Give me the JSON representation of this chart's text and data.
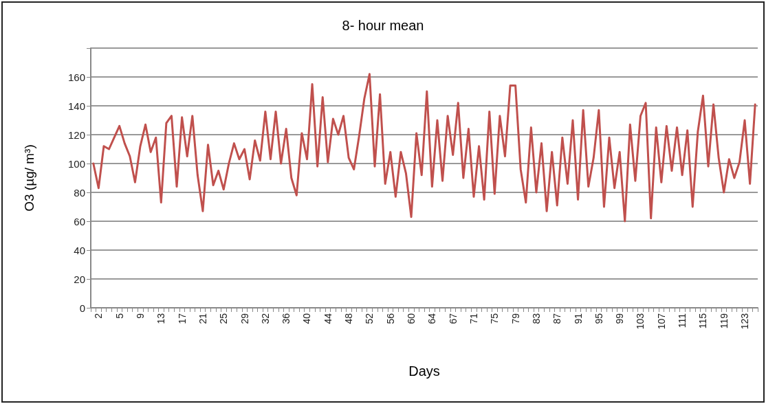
{
  "chart_data": {
    "type": "line",
    "title": "8- hour mean",
    "xlabel": "Days",
    "ylabel": "O3 (µg/ m³)",
    "categories": [
      null,
      "2",
      null,
      null,
      null,
      "5",
      null,
      null,
      null,
      "9",
      null,
      null,
      null,
      "13",
      null,
      null,
      null,
      "17",
      null,
      null,
      null,
      "21",
      null,
      null,
      null,
      "25",
      null,
      null,
      null,
      "29",
      null,
      null,
      null,
      "32",
      null,
      null,
      null,
      "36",
      null,
      null,
      null,
      "40",
      null,
      null,
      null,
      "44",
      null,
      null,
      null,
      "48",
      null,
      null,
      null,
      "52",
      null,
      null,
      null,
      "56",
      null,
      null,
      null,
      "60",
      null,
      null,
      null,
      "64",
      null,
      null,
      null,
      "67",
      null,
      null,
      null,
      "71",
      null,
      null,
      null,
      "75",
      null,
      null,
      null,
      "79",
      null,
      null,
      null,
      "83",
      null,
      null,
      null,
      "87",
      null,
      null,
      null,
      "91",
      null,
      null,
      null,
      "95",
      null,
      null,
      null,
      "99",
      null,
      null,
      null,
      "103",
      null,
      null,
      null,
      "107",
      null,
      null,
      null,
      "111",
      null,
      null,
      null,
      "115",
      null,
      null,
      null,
      "119",
      null,
      null,
      null,
      "123",
      null,
      null
    ],
    "series": [
      {
        "color": "#c0504d",
        "values": [
          100,
          83,
          112,
          110,
          118,
          126,
          114,
          105,
          87,
          112,
          127,
          108,
          118,
          73,
          128,
          133,
          84,
          132,
          105,
          133,
          92,
          67,
          113,
          85,
          95,
          82,
          100,
          114,
          103,
          110,
          89,
          116,
          102,
          136,
          103,
          136,
          100,
          124,
          90,
          78,
          121,
          103,
          155,
          98,
          146,
          101,
          131,
          120,
          133,
          104,
          96,
          119,
          145,
          162,
          98,
          148,
          86,
          108,
          77,
          108,
          93,
          63,
          121,
          92,
          150,
          84,
          130,
          88,
          133,
          106,
          142,
          90,
          124,
          77,
          112,
          75,
          136,
          79,
          133,
          105,
          154,
          154,
          96,
          73,
          125,
          80,
          114,
          67,
          108,
          71,
          118,
          86,
          130,
          75,
          137,
          84,
          104,
          137,
          70,
          118,
          83,
          108,
          60,
          127,
          88,
          133,
          142,
          62,
          125,
          87,
          126,
          95,
          125,
          92,
          123,
          70,
          122,
          147,
          98,
          141,
          104,
          80,
          103,
          90,
          101,
          130,
          86,
          141
        ]
      }
    ],
    "ylim": [
      0,
      180
    ],
    "yticks": [
      0,
      20,
      40,
      60,
      80,
      100,
      120,
      140,
      160,
      {
        "value": 180,
        "label": null
      }
    ],
    "grid": "y",
    "marker": "none",
    "line_style": "solid"
  }
}
